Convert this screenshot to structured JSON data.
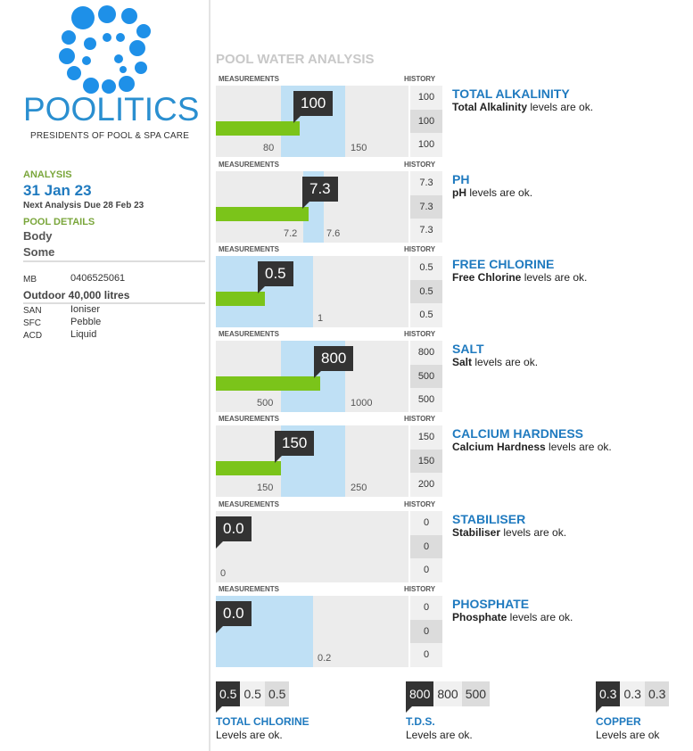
{
  "brand": {
    "name": "POOLITICS",
    "tagline": "PRESIDENTS OF POOL & SPA CARE",
    "color": "#2a8fd0"
  },
  "sidebar": {
    "analysis_label": "ANALYSIS",
    "analysis_date": "31 Jan 23",
    "next_due": "Next Analysis Due 28 Feb 23",
    "pool_details_label": "POOL DETAILS",
    "pool_line1": "Body",
    "pool_line2": "Some",
    "mb_key": "MB",
    "mb_value": "0406525061",
    "volume": "Outdoor 40,000 litres",
    "specs": [
      {
        "key": "SAN",
        "value": "Ioniser"
      },
      {
        "key": "SFC",
        "value": "Pebble"
      },
      {
        "key": "ACD",
        "value": "Liquid"
      }
    ]
  },
  "main": {
    "title": "POOL WATER ANALYSIS",
    "measurements_header": "MEASUREMENTS",
    "history_header": "HISTORY"
  },
  "tests": [
    {
      "title": "TOTAL ALKALINITY",
      "bold": "Total Alkalinity",
      "status": " levels are ok.",
      "value": "100",
      "low_label": "80",
      "high_label": "150",
      "history": [
        "100",
        "100",
        "100"
      ]
    },
    {
      "title": "PH",
      "bold": "pH",
      "status": " levels are ok.",
      "value": "7.3",
      "low_label": "7.2",
      "high_label": "7.6",
      "history": [
        "7.3",
        "7.3",
        "7.3"
      ]
    },
    {
      "title": "FREE CHLORINE",
      "bold": "Free Chlorine",
      "status": " levels are ok.",
      "value": "0.5",
      "low_label": "",
      "high_label": "1",
      "history": [
        "0.5",
        "0.5",
        "0.5"
      ]
    },
    {
      "title": "SALT",
      "bold": "Salt",
      "status": " levels are ok.",
      "value": "800",
      "low_label": "500",
      "high_label": "1000",
      "history": [
        "800",
        "500",
        "500"
      ]
    },
    {
      "title": "CALCIUM HARDNESS",
      "bold": "Calcium Hardness",
      "status": " levels are ok.",
      "value": "150",
      "low_label": "150",
      "high_label": "250",
      "history": [
        "150",
        "150",
        "200"
      ]
    },
    {
      "title": "STABILISER",
      "bold": "Stabiliser",
      "status": " levels are ok.",
      "value": "0.0",
      "low_label": "0",
      "high_label": "",
      "history": [
        "0",
        "0",
        "0"
      ]
    },
    {
      "title": "PHOSPHATE",
      "bold": "Phosphate",
      "status": " levels are ok.",
      "value": "0.0",
      "low_label": "",
      "high_label": "0.2",
      "history": [
        "0",
        "0",
        "0"
      ]
    }
  ],
  "mini_tests": [
    {
      "title": "TOTAL CHLORINE",
      "text": "Levels are ok.",
      "values": [
        "0.5",
        "0.5",
        "0.5"
      ]
    },
    {
      "title": "T.D.S.",
      "text": "Levels are ok.",
      "values": [
        "800",
        "800",
        "500"
      ]
    },
    {
      "title": "COPPER",
      "text": "Levels are ok",
      "values": [
        "0.3",
        "0.3",
        "0.3"
      ]
    }
  ],
  "colors": {
    "accent_blue": "#1f7abf",
    "range_blue": "#bfe0f5",
    "measurement_green": "#7bc41a",
    "label_green": "#7aa63b",
    "value_dark": "#333333"
  }
}
